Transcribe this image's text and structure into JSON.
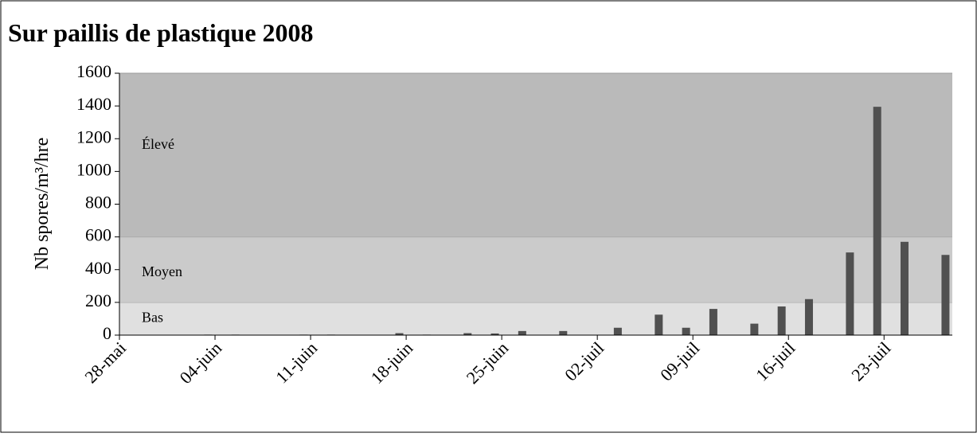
{
  "chart_data": {
    "type": "bar",
    "title": "Sur paillis de plastique 2008",
    "y_label": "Nb spores/m³/hre",
    "zones": [
      {
        "label": "Bas",
        "from": 0,
        "to": 200,
        "color": "#e0e0e0"
      },
      {
        "label": "Moyen",
        "from": 200,
        "to": 600,
        "color": "#cbcbcb"
      },
      {
        "label": "Élevé",
        "from": 600,
        "to": 1600,
        "color": "#bababa"
      }
    ],
    "x": [
      6,
      8,
      13,
      15,
      20,
      22,
      25,
      27,
      29,
      32,
      36,
      39,
      41,
      43,
      46,
      48,
      50,
      53,
      55,
      57,
      60
    ],
    "values": [
      3,
      3,
      3,
      3,
      12,
      3,
      12,
      10,
      25,
      25,
      45,
      125,
      45,
      160,
      70,
      175,
      220,
      505,
      1395,
      570,
      490
    ],
    "color": "#505050",
    "xlim": [
      0,
      61
    ],
    "xticks": [
      {
        "value": 0,
        "label": "28-mai"
      },
      {
        "value": 7,
        "label": "04-juin"
      },
      {
        "value": 14,
        "label": "11-juin"
      },
      {
        "value": 21,
        "label": "18-juin"
      },
      {
        "value": 28,
        "label": "25-juin"
      },
      {
        "value": 35,
        "label": "02-juil"
      },
      {
        "value": 42,
        "label": "09-juil"
      },
      {
        "value": 49,
        "label": "16-juil"
      },
      {
        "value": 56,
        "label": "23-juil"
      }
    ],
    "ylim": [
      0,
      1600
    ],
    "yticks": [
      0,
      200,
      400,
      600,
      800,
      1000,
      1200,
      1400,
      1600
    ]
  }
}
